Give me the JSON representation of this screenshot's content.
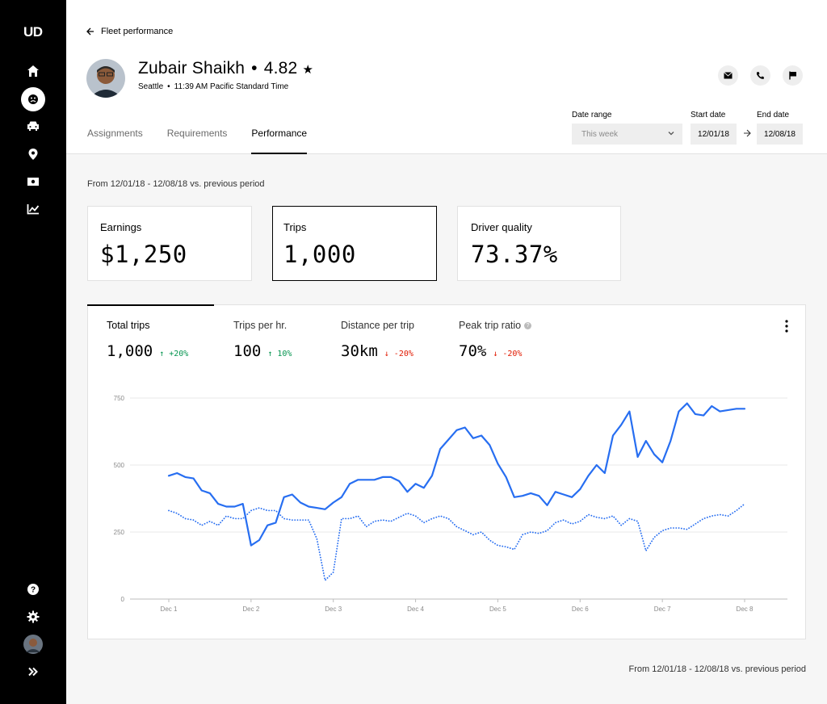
{
  "app": {
    "logo": "UD"
  },
  "sidebar": {
    "items": [
      {
        "icon": "home-icon"
      },
      {
        "icon": "drivers-icon",
        "active": true
      },
      {
        "icon": "car-icon"
      },
      {
        "icon": "location-pin-icon"
      },
      {
        "icon": "cash-icon"
      },
      {
        "icon": "analytics-icon"
      }
    ],
    "bottom": [
      {
        "icon": "help-icon"
      },
      {
        "icon": "settings-icon"
      },
      {
        "icon": "user-avatar"
      },
      {
        "icon": "expand-icon"
      }
    ]
  },
  "header": {
    "back_label": "Fleet performance",
    "driver_name": "Zubair Shaikh",
    "rating": "4.82",
    "city": "Seattle",
    "local_time": "11:39 AM Pacific Standard Time",
    "tabs": [
      {
        "label": "Assignments"
      },
      {
        "label": "Requirements"
      },
      {
        "label": "Performance",
        "active": true
      }
    ],
    "date_range_label": "Date range",
    "date_range_value": "This week",
    "start_date_label": "Start date",
    "start_date_value": "12/01/18",
    "end_date_label": "End date",
    "end_date_value": "12/08/18"
  },
  "summary": {
    "period_text": "From 12/01/18 - 12/08/18 vs. previous period",
    "cards": [
      {
        "label": "Earnings",
        "value": "$1,250"
      },
      {
        "label": "Trips",
        "value": "1,000",
        "selected": true
      },
      {
        "label": "Driver quality",
        "value": "73.37%"
      }
    ]
  },
  "metrics": [
    {
      "label": "Total trips",
      "value": "1,000",
      "delta": "↑ +20%",
      "direction": "up",
      "active": true
    },
    {
      "label": "Trips per hr.",
      "value": "100",
      "delta": "↑ 10%",
      "direction": "up"
    },
    {
      "label": "Distance per trip",
      "value": "30km",
      "delta": "↓ -20%",
      "direction": "down"
    },
    {
      "label": "Peak trip ratio",
      "value": "70%",
      "delta": "↓ -20%",
      "direction": "down"
    }
  ],
  "chart_data": {
    "type": "line",
    "y_ticks": [
      "0",
      "250",
      "500",
      "750"
    ],
    "ylim": [
      0,
      750
    ],
    "x_ticks": [
      "Dec 1",
      "Dec 2",
      "Dec 3",
      "Dec 4",
      "Dec 5",
      "Dec 6",
      "Dec 7",
      "Dec 8"
    ],
    "xlim": [
      0,
      7
    ],
    "grid": true,
    "series": [
      {
        "style": "solid",
        "color": "#276ef1",
        "x": [
          0,
          0.1,
          0.2,
          0.3,
          0.4,
          0.5,
          0.6,
          0.7,
          0.8,
          0.9,
          1,
          1.1,
          1.2,
          1.3,
          1.4,
          1.5,
          1.6,
          1.7,
          1.8,
          1.9,
          2,
          2.1,
          2.2,
          2.3,
          2.4,
          2.5,
          2.6,
          2.7,
          2.8,
          2.9,
          3,
          3.1,
          3.2,
          3.3,
          3.4,
          3.5,
          3.6,
          3.7,
          3.8,
          3.9,
          4,
          4.1,
          4.2,
          4.3,
          4.4,
          4.5,
          4.6,
          4.7,
          4.8,
          4.9,
          5,
          5.1,
          5.2,
          5.3,
          5.4,
          5.5,
          5.6,
          5.7,
          5.8,
          5.9,
          6,
          6.1,
          6.2,
          6.3,
          6.4,
          6.5,
          6.6,
          6.7,
          6.8,
          6.9,
          7
        ],
        "values": [
          460,
          470,
          455,
          450,
          405,
          395,
          355,
          345,
          345,
          355,
          200,
          220,
          275,
          285,
          380,
          390,
          360,
          345,
          340,
          335,
          360,
          380,
          430,
          445,
          445,
          445,
          455,
          455,
          440,
          400,
          430,
          415,
          460,
          560,
          595,
          630,
          640,
          600,
          610,
          575,
          505,
          455,
          380,
          385,
          395,
          385,
          350,
          400,
          390,
          380,
          410,
          460,
          500,
          470,
          610,
          650,
          700,
          530,
          590,
          540,
          510,
          590,
          700,
          730,
          690,
          685,
          720,
          700,
          705,
          710,
          710
        ],
        "note": "approximate curve shape"
      },
      {
        "style": "dotted",
        "color": "#276ef1",
        "x": [
          0,
          0.1,
          0.2,
          0.3,
          0.4,
          0.5,
          0.6,
          0.7,
          0.8,
          0.9,
          1,
          1.1,
          1.2,
          1.3,
          1.4,
          1.5,
          1.6,
          1.7,
          1.8,
          1.9,
          2,
          2.1,
          2.2,
          2.3,
          2.4,
          2.5,
          2.6,
          2.7,
          2.8,
          2.9,
          3,
          3.1,
          3.2,
          3.3,
          3.4,
          3.5,
          3.6,
          3.7,
          3.8,
          3.9,
          4,
          4.1,
          4.2,
          4.3,
          4.4,
          4.5,
          4.6,
          4.7,
          4.8,
          4.9,
          5,
          5.1,
          5.2,
          5.3,
          5.4,
          5.5,
          5.6,
          5.7,
          5.8,
          5.9,
          6,
          6.1,
          6.2,
          6.3,
          6.4,
          6.5,
          6.6,
          6.7,
          6.8,
          6.9,
          7
        ],
        "values": [
          330,
          320,
          300,
          295,
          275,
          290,
          275,
          310,
          300,
          300,
          330,
          340,
          330,
          330,
          300,
          295,
          295,
          295,
          225,
          70,
          100,
          300,
          300,
          310,
          270,
          290,
          295,
          290,
          305,
          320,
          310,
          285,
          300,
          310,
          300,
          270,
          255,
          240,
          250,
          220,
          200,
          195,
          185,
          240,
          250,
          245,
          255,
          285,
          295,
          280,
          290,
          315,
          305,
          300,
          310,
          275,
          300,
          290,
          180,
          230,
          255,
          265,
          265,
          260,
          280,
          300,
          310,
          315,
          310,
          330,
          355
        ]
      }
    ]
  },
  "footer": {
    "period_text": "From 12/01/18 - 12/08/18 vs. previous period"
  }
}
